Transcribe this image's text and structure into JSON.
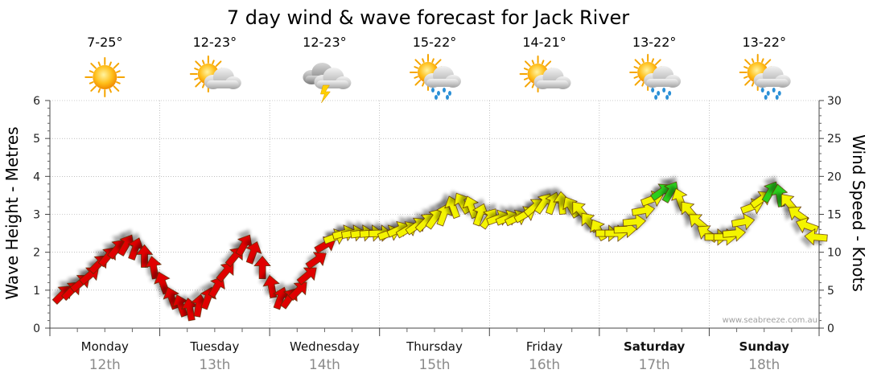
{
  "chart_data": {
    "type": "line",
    "title": "7 day wind & wave forecast for Jack River",
    "ylabel_left": "Wave Height - Metres",
    "ylabel_right": "Wind Speed - Knots",
    "ylim_left": [
      0,
      6
    ],
    "ylim_right": [
      0,
      30
    ],
    "yticks_left": [
      "0",
      "1",
      "2",
      "3",
      "4",
      "5",
      "6"
    ],
    "yticks_right": [
      "0",
      "5",
      "10",
      "15",
      "20",
      "25",
      "30"
    ],
    "grid": true,
    "days": [
      {
        "name": "Monday",
        "date": "12th",
        "temp": "7-25°",
        "weather_icon": "sunny-icon",
        "bold": false
      },
      {
        "name": "Tuesday",
        "date": "13th",
        "temp": "12-23°",
        "weather_icon": "partly-cloudy-icon",
        "bold": false
      },
      {
        "name": "Wednesday",
        "date": "14th",
        "temp": "12-23°",
        "weather_icon": "thunderstorm-icon",
        "bold": false
      },
      {
        "name": "Thursday",
        "date": "15th",
        "temp": "15-22°",
        "weather_icon": "showers-icon",
        "bold": false
      },
      {
        "name": "Friday",
        "date": "16th",
        "temp": "14-21°",
        "weather_icon": "partly-cloudy-icon",
        "bold": false
      },
      {
        "name": "Saturday",
        "date": "17th",
        "temp": "13-22°",
        "weather_icon": "showers-icon",
        "bold": true
      },
      {
        "name": "Sunday",
        "date": "18th",
        "temp": "13-22°",
        "weather_icon": "showers-icon",
        "bold": true
      }
    ],
    "series": [
      {
        "type": "wind",
        "unit": "knots",
        "points_per_day": 12,
        "values": [
          4.5,
          5,
          6,
          7,
          8.5,
          9.5,
          10.5,
          11,
          10.5,
          9.5,
          8,
          6,
          4,
          3,
          2.5,
          3,
          4,
          5.5,
          7.5,
          9.5,
          11,
          10,
          8,
          5.5,
          4,
          4,
          5,
          7,
          9,
          11,
          12,
          12.5,
          12.5,
          12.5,
          12.5,
          12.5,
          12.5,
          13,
          13,
          13.5,
          14,
          14.5,
          15,
          16,
          16.5,
          16,
          15,
          14.5,
          14.5,
          14.5,
          14.5,
          15,
          16,
          16.5,
          16.5,
          16.5,
          16,
          15.5,
          14,
          13,
          12.5,
          12.5,
          13,
          14,
          15.5,
          17,
          18,
          18,
          17,
          15.5,
          14,
          12.5,
          12,
          12,
          12.5,
          14,
          16,
          17,
          18,
          17.5,
          16.5,
          15,
          13.5,
          12
        ],
        "directions_deg": [
          225,
          225,
          230,
          230,
          225,
          220,
          220,
          210,
          200,
          180,
          170,
          160,
          160,
          160,
          170,
          190,
          200,
          210,
          220,
          220,
          210,
          200,
          180,
          170,
          200,
          215,
          225,
          230,
          235,
          240,
          250,
          255,
          260,
          262,
          265,
          268,
          250,
          245,
          240,
          235,
          225,
          215,
          200,
          160,
          150,
          160,
          200,
          215,
          250,
          248,
          245,
          240,
          230,
          215,
          200,
          175,
          150,
          140,
          140,
          150,
          270,
          270,
          268,
          265,
          260,
          250,
          235,
          210,
          160,
          140,
          130,
          125,
          270,
          270,
          265,
          260,
          250,
          235,
          210,
          170,
          140,
          125,
          110,
          95
        ]
      }
    ],
    "colors": {
      "light": "#e00000",
      "moderate": "#f4f400",
      "strong": "#2bcf1f",
      "grid": "#9a9a9a"
    },
    "watermark": "www.seabreeze.com.au"
  }
}
